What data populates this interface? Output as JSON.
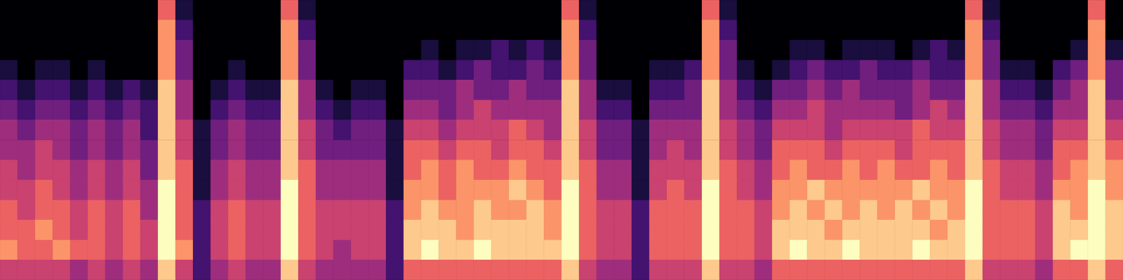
{
  "chart_data": {
    "type": "heatmap",
    "color": "magma",
    "color_range": [
      0,
      9
    ],
    "ylim": [
      0,
      14
    ],
    "grid": false,
    "tick_labels": false,
    "cells": [
      [
        0,
        0,
        0,
        0,
        0,
        0,
        0,
        0,
        0,
        6,
        1,
        0,
        0,
        0,
        0,
        0,
        6,
        1,
        0,
        0,
        0,
        0,
        0,
        0,
        0,
        0,
        0,
        0,
        0,
        0,
        0,
        0,
        6,
        1,
        0,
        0,
        0,
        0,
        0,
        0,
        6,
        1,
        0,
        0,
        0,
        0,
        0,
        0,
        0,
        0,
        0,
        0,
        0,
        0,
        0,
        6,
        1,
        0,
        0,
        0,
        0,
        0,
        6,
        0
      ],
      [
        0,
        0,
        0,
        0,
        0,
        0,
        0,
        0,
        0,
        7,
        2,
        0,
        0,
        0,
        0,
        0,
        7,
        2,
        0,
        0,
        0,
        0,
        0,
        0,
        0,
        0,
        0,
        0,
        0,
        0,
        0,
        0,
        7,
        2,
        0,
        0,
        0,
        0,
        0,
        0,
        7,
        2,
        0,
        0,
        0,
        0,
        0,
        0,
        0,
        0,
        0,
        0,
        0,
        0,
        0,
        7,
        2,
        0,
        0,
        0,
        0,
        0,
        7,
        0
      ],
      [
        0,
        0,
        0,
        0,
        0,
        0,
        0,
        0,
        0,
        7,
        3,
        0,
        0,
        0,
        0,
        0,
        7,
        3,
        0,
        0,
        0,
        0,
        0,
        0,
        1,
        0,
        1,
        1,
        2,
        1,
        2,
        1,
        7,
        3,
        0,
        0,
        0,
        0,
        0,
        0,
        7,
        3,
        0,
        0,
        0,
        1,
        1,
        0,
        1,
        1,
        1,
        0,
        1,
        2,
        1,
        7,
        3,
        0,
        0,
        0,
        0,
        1,
        7,
        1
      ],
      [
        1,
        0,
        1,
        1,
        0,
        1,
        0,
        0,
        0,
        7,
        3,
        0,
        0,
        1,
        0,
        0,
        7,
        3,
        0,
        0,
        0,
        0,
        0,
        2,
        2,
        1,
        2,
        3,
        2,
        2,
        3,
        2,
        7,
        3,
        0,
        0,
        0,
        1,
        1,
        2,
        7,
        3,
        1,
        0,
        1,
        2,
        3,
        2,
        2,
        3,
        2,
        2,
        3,
        2,
        2,
        7,
        3,
        1,
        1,
        0,
        2,
        3,
        7,
        3
      ],
      [
        2,
        1,
        2,
        2,
        1,
        2,
        1,
        2,
        1,
        8,
        4,
        0,
        1,
        2,
        1,
        1,
        8,
        4,
        1,
        0,
        1,
        1,
        0,
        3,
        3,
        3,
        4,
        3,
        3,
        4,
        3,
        3,
        8,
        4,
        1,
        1,
        0,
        2,
        2,
        3,
        8,
        4,
        2,
        1,
        3,
        3,
        4,
        3,
        4,
        3,
        3,
        3,
        4,
        3,
        3,
        8,
        4,
        2,
        2,
        1,
        3,
        4,
        8,
        3
      ],
      [
        3,
        2,
        3,
        3,
        2,
        3,
        2,
        3,
        2,
        8,
        4,
        0,
        2,
        3,
        2,
        2,
        8,
        4,
        2,
        1,
        2,
        2,
        0,
        4,
        4,
        3,
        4,
        5,
        4,
        4,
        4,
        4,
        8,
        4,
        2,
        2,
        0,
        3,
        3,
        3,
        8,
        4,
        3,
        2,
        4,
        4,
        5,
        4,
        4,
        4,
        4,
        3,
        4,
        5,
        4,
        8,
        4,
        3,
        3,
        2,
        4,
        4,
        8,
        4
      ],
      [
        4,
        3,
        4,
        4,
        3,
        4,
        3,
        4,
        2,
        8,
        5,
        1,
        3,
        4,
        3,
        3,
        8,
        5,
        3,
        2,
        3,
        3,
        1,
        5,
        5,
        4,
        5,
        5,
        5,
        6,
        5,
        4,
        8,
        5,
        3,
        3,
        1,
        4,
        4,
        4,
        8,
        5,
        4,
        3,
        5,
        5,
        5,
        4,
        5,
        5,
        5,
        5,
        6,
        5,
        5,
        8,
        5,
        4,
        4,
        3,
        5,
        5,
        8,
        5
      ],
      [
        4,
        4,
        5,
        4,
        3,
        4,
        3,
        4,
        3,
        8,
        5,
        1,
        3,
        4,
        3,
        3,
        8,
        5,
        3,
        3,
        3,
        3,
        1,
        6,
        6,
        5,
        6,
        6,
        5,
        6,
        6,
        5,
        8,
        5,
        3,
        3,
        1,
        4,
        5,
        4,
        8,
        5,
        4,
        3,
        6,
        6,
        6,
        5,
        6,
        6,
        6,
        5,
        6,
        6,
        6,
        8,
        5,
        4,
        4,
        3,
        6,
        6,
        8,
        6
      ],
      [
        5,
        4,
        5,
        5,
        4,
        5,
        4,
        5,
        3,
        8,
        6,
        1,
        4,
        5,
        4,
        4,
        8,
        6,
        4,
        4,
        4,
        4,
        1,
        6,
        7,
        6,
        7,
        6,
        6,
        7,
        6,
        6,
        8,
        6,
        4,
        4,
        1,
        5,
        5,
        5,
        8,
        6,
        5,
        4,
        6,
        7,
        6,
        6,
        7,
        6,
        7,
        6,
        6,
        7,
        6,
        8,
        6,
        5,
        5,
        4,
        6,
        7,
        8,
        7
      ],
      [
        5,
        5,
        6,
        5,
        4,
        5,
        4,
        5,
        4,
        9,
        6,
        1,
        4,
        5,
        4,
        4,
        9,
        6,
        4,
        4,
        4,
        4,
        1,
        7,
        7,
        6,
        7,
        7,
        7,
        8,
        7,
        6,
        9,
        6,
        4,
        4,
        1,
        5,
        6,
        5,
        9,
        6,
        5,
        4,
        7,
        7,
        8,
        7,
        7,
        7,
        7,
        7,
        8,
        7,
        7,
        9,
        6,
        5,
        5,
        4,
        7,
        7,
        9,
        7
      ],
      [
        6,
        5,
        6,
        6,
        5,
        6,
        5,
        6,
        4,
        9,
        6,
        2,
        5,
        6,
        5,
        5,
        9,
        6,
        5,
        5,
        5,
        5,
        2,
        7,
        8,
        7,
        7,
        8,
        7,
        7,
        8,
        7,
        9,
        6,
        5,
        5,
        2,
        6,
        6,
        6,
        9,
        6,
        6,
        5,
        7,
        8,
        7,
        8,
        7,
        8,
        7,
        8,
        7,
        8,
        7,
        9,
        6,
        6,
        6,
        5,
        8,
        7,
        9,
        8
      ],
      [
        6,
        6,
        7,
        6,
        5,
        6,
        5,
        6,
        5,
        9,
        6,
        2,
        5,
        6,
        5,
        5,
        9,
        6,
        5,
        5,
        5,
        5,
        2,
        8,
        8,
        8,
        7,
        8,
        8,
        8,
        8,
        7,
        9,
        6,
        5,
        5,
        2,
        6,
        6,
        6,
        9,
        6,
        6,
        5,
        8,
        8,
        8,
        7,
        8,
        8,
        8,
        8,
        8,
        7,
        8,
        9,
        6,
        6,
        6,
        5,
        8,
        8,
        9,
        8
      ],
      [
        7,
        6,
        6,
        7,
        6,
        6,
        5,
        6,
        5,
        9,
        7,
        2,
        5,
        6,
        5,
        5,
        9,
        6,
        5,
        4,
        5,
        5,
        2,
        8,
        9,
        8,
        8,
        9,
        8,
        8,
        8,
        8,
        9,
        6,
        5,
        5,
        2,
        6,
        6,
        6,
        9,
        6,
        6,
        5,
        8,
        9,
        8,
        8,
        9,
        8,
        8,
        8,
        9,
        8,
        8,
        9,
        6,
        6,
        6,
        5,
        8,
        9,
        9,
        8
      ],
      [
        5,
        5,
        5,
        5,
        4,
        5,
        4,
        5,
        4,
        8,
        5,
        2,
        4,
        5,
        4,
        4,
        8,
        5,
        4,
        4,
        4,
        4,
        2,
        6,
        6,
        6,
        6,
        6,
        6,
        6,
        6,
        6,
        8,
        5,
        4,
        4,
        2,
        5,
        5,
        5,
        8,
        5,
        5,
        4,
        6,
        6,
        6,
        6,
        6,
        6,
        6,
        6,
        6,
        6,
        6,
        8,
        5,
        5,
        5,
        4,
        6,
        6,
        8,
        6
      ]
    ]
  }
}
